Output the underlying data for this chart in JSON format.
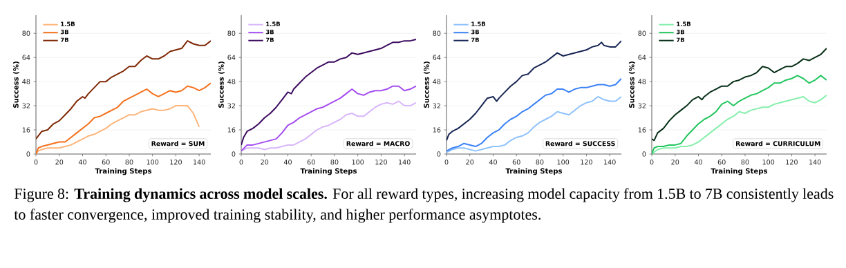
{
  "chart_data": [
    {
      "type": "line",
      "xlabel": "Training Steps",
      "ylabel": "Success (%)",
      "xlim": [
        0,
        150
      ],
      "ylim": [
        0,
        92
      ],
      "xticks": [
        0,
        20,
        40,
        60,
        80,
        100,
        120,
        140
      ],
      "yticks": [
        0,
        16,
        32,
        48,
        64,
        80
      ],
      "grid": "y",
      "legend": "top left",
      "marker": "none",
      "annotations": [
        "Reward = SUM",
        "Figure 8: **Training dynamics across model scales.** For all reward types, increasing model capacity from 1.5B to 7B consistently leads to faster convergence, improved training stability, and higher performance asymptotes."
      ],
      "series": [
        {
          "name": "1.5B",
          "color": "#fdb57a",
          "x": [
            0,
            2,
            5,
            10,
            15,
            20,
            25,
            30,
            35,
            40,
            45,
            50,
            55,
            60,
            65,
            70,
            75,
            80,
            85,
            90,
            95,
            100,
            105,
            110,
            115,
            120,
            125,
            130,
            135,
            140
          ],
          "values": [
            0,
            2,
            3,
            4,
            4,
            4,
            5,
            6,
            8,
            10,
            12,
            13,
            15,
            17,
            20,
            22,
            24,
            26,
            26,
            28,
            29,
            30,
            29,
            29,
            30,
            32,
            32,
            32,
            27,
            18
          ]
        },
        {
          "name": "3B",
          "color": "#f4711c",
          "x": [
            0,
            2,
            5,
            10,
            15,
            20,
            25,
            30,
            35,
            40,
            45,
            50,
            55,
            60,
            65,
            70,
            75,
            80,
            85,
            90,
            95,
            100,
            105,
            110,
            115,
            120,
            125,
            130,
            135,
            140,
            145,
            150
          ],
          "values": [
            0,
            4,
            5,
            6,
            7,
            8,
            8,
            11,
            14,
            17,
            20,
            24,
            25,
            27,
            29,
            31,
            35,
            37,
            39,
            41,
            43,
            40,
            38,
            40,
            42,
            41,
            42,
            45,
            44,
            42,
            44,
            47
          ]
        },
        {
          "name": "7B",
          "color": "#7f2704",
          "x": [
            0,
            5,
            10,
            15,
            20,
            25,
            30,
            35,
            40,
            42,
            45,
            50,
            55,
            60,
            65,
            70,
            75,
            80,
            85,
            90,
            95,
            100,
            105,
            110,
            115,
            120,
            125,
            130,
            135,
            140,
            145,
            150
          ],
          "values": [
            10,
            15,
            16,
            20,
            22,
            26,
            30,
            35,
            38,
            37,
            40,
            44,
            48,
            48,
            51,
            53,
            55,
            58,
            58,
            62,
            65,
            63,
            63,
            65,
            68,
            69,
            70,
            75,
            73,
            72,
            72,
            75
          ]
        }
      ]
    },
    {
      "type": "line",
      "xlabel": "Training Steps",
      "ylabel": "Success (%)",
      "xlim": [
        0,
        150
      ],
      "ylim": [
        0,
        92
      ],
      "xticks": [
        0,
        20,
        40,
        60,
        80,
        100,
        120,
        140
      ],
      "yticks": [
        0,
        16,
        32,
        48,
        64,
        80
      ],
      "grid": "y",
      "legend": "top left",
      "marker": "none",
      "annotations": [
        "Reward = MACRO"
      ],
      "series": [
        {
          "name": "1.5B",
          "color": "#d8b6fa",
          "x": [
            0,
            5,
            10,
            15,
            20,
            25,
            30,
            35,
            40,
            45,
            50,
            55,
            60,
            65,
            70,
            75,
            80,
            85,
            90,
            95,
            100,
            105,
            110,
            115,
            120,
            125,
            130,
            135,
            140,
            145,
            150
          ],
          "values": [
            2,
            4,
            4,
            4,
            3,
            4,
            4,
            5,
            6,
            6,
            8,
            10,
            13,
            16,
            18,
            19,
            21,
            23,
            26,
            27,
            25,
            25,
            28,
            31,
            33,
            34,
            33,
            35,
            32,
            32,
            34
          ]
        },
        {
          "name": "3B",
          "color": "#a44cf0",
          "x": [
            0,
            5,
            10,
            15,
            20,
            25,
            30,
            35,
            40,
            45,
            50,
            55,
            60,
            65,
            70,
            75,
            80,
            85,
            90,
            95,
            100,
            105,
            110,
            115,
            120,
            125,
            130,
            135,
            140,
            145,
            150
          ],
          "values": [
            2,
            6,
            6,
            7,
            8,
            9,
            10,
            14,
            19,
            21,
            24,
            26,
            28,
            30,
            31,
            33,
            35,
            37,
            40,
            43,
            40,
            39,
            41,
            42,
            42,
            43,
            45,
            45,
            42,
            43,
            45
          ]
        },
        {
          "name": "7B",
          "color": "#3b0a5e",
          "x": [
            0,
            2,
            5,
            10,
            15,
            20,
            25,
            30,
            35,
            40,
            43,
            45,
            50,
            55,
            60,
            65,
            70,
            75,
            80,
            85,
            90,
            95,
            100,
            105,
            110,
            115,
            120,
            125,
            130,
            135,
            140,
            145,
            150
          ],
          "values": [
            6,
            11,
            15,
            17,
            20,
            24,
            27,
            31,
            36,
            41,
            40,
            43,
            47,
            51,
            54,
            57,
            59,
            61,
            61,
            63,
            64,
            67,
            66,
            67,
            68,
            69,
            70,
            72,
            74,
            74,
            75,
            75,
            76
          ]
        }
      ]
    },
    {
      "type": "line",
      "xlabel": "Training Steps",
      "ylabel": "Success (%)",
      "xlim": [
        0,
        150
      ],
      "ylim": [
        0,
        92
      ],
      "xticks": [
        0,
        20,
        40,
        60,
        80,
        100,
        120,
        140
      ],
      "yticks": [
        0,
        16,
        32,
        48,
        64,
        80
      ],
      "grid": "y",
      "legend": "top left",
      "marker": "none",
      "annotations": [
        "Reward = SUCCESS"
      ],
      "series": [
        {
          "name": "1.5B",
          "color": "#8ec2fb",
          "x": [
            0,
            5,
            10,
            15,
            20,
            25,
            30,
            35,
            40,
            45,
            50,
            55,
            60,
            65,
            70,
            75,
            80,
            85,
            90,
            95,
            100,
            105,
            110,
            115,
            120,
            125,
            130,
            135,
            140,
            145,
            150
          ],
          "values": [
            1,
            3,
            4,
            4,
            3,
            2,
            3,
            4,
            5,
            5,
            6,
            9,
            11,
            12,
            14,
            18,
            21,
            23,
            25,
            28,
            27,
            26,
            29,
            32,
            34,
            35,
            38,
            36,
            35,
            35,
            38
          ]
        },
        {
          "name": "3B",
          "color": "#3b82f6",
          "x": [
            0,
            5,
            10,
            15,
            20,
            25,
            30,
            35,
            40,
            45,
            50,
            55,
            60,
            65,
            70,
            75,
            80,
            85,
            90,
            95,
            100,
            105,
            110,
            115,
            120,
            125,
            130,
            135,
            140,
            145,
            150
          ],
          "values": [
            2,
            4,
            5,
            7,
            6,
            5,
            7,
            11,
            14,
            16,
            20,
            23,
            25,
            28,
            30,
            33,
            36,
            39,
            40,
            43,
            43,
            41,
            43,
            44,
            44,
            45,
            46,
            46,
            45,
            46,
            50
          ]
        },
        {
          "name": "7B",
          "color": "#172554",
          "x": [
            0,
            2,
            5,
            10,
            15,
            20,
            25,
            30,
            35,
            40,
            43,
            45,
            50,
            55,
            60,
            65,
            70,
            75,
            80,
            85,
            90,
            95,
            100,
            105,
            110,
            115,
            120,
            125,
            130,
            133,
            135,
            140,
            145,
            150
          ],
          "values": [
            9,
            13,
            15,
            17,
            20,
            23,
            27,
            32,
            37,
            38,
            35,
            37,
            41,
            45,
            48,
            52,
            53,
            57,
            59,
            61,
            64,
            67,
            65,
            66,
            67,
            68,
            69,
            71,
            72,
            74,
            72,
            71,
            71,
            75
          ]
        }
      ]
    },
    {
      "type": "line",
      "xlabel": "Training Steps",
      "ylabel": "Success (%)",
      "xlim": [
        0,
        150
      ],
      "ylim": [
        0,
        92
      ],
      "xticks": [
        0,
        20,
        40,
        60,
        80,
        100,
        120,
        140
      ],
      "yticks": [
        0,
        16,
        32,
        48,
        64,
        80
      ],
      "grid": "y",
      "legend": "top left",
      "marker": "none",
      "annotations": [
        "Reward = CURRICULUM"
      ],
      "series": [
        {
          "name": "1.5B",
          "color": "#86efac",
          "x": [
            0,
            5,
            10,
            15,
            20,
            25,
            30,
            35,
            40,
            45,
            50,
            55,
            60,
            65,
            70,
            75,
            80,
            85,
            90,
            95,
            100,
            105,
            110,
            115,
            120,
            125,
            130,
            135,
            140,
            145,
            150
          ],
          "values": [
            0,
            3,
            4,
            4,
            4,
            5,
            5,
            6,
            8,
            11,
            14,
            17,
            20,
            23,
            25,
            28,
            27,
            29,
            30,
            31,
            31,
            33,
            34,
            35,
            36,
            37,
            38,
            35,
            34,
            36,
            39
          ]
        },
        {
          "name": "3B",
          "color": "#22c55e",
          "x": [
            0,
            2,
            5,
            10,
            15,
            20,
            25,
            30,
            35,
            40,
            45,
            50,
            55,
            60,
            65,
            70,
            75,
            80,
            85,
            90,
            95,
            100,
            105,
            110,
            115,
            120,
            125,
            130,
            135,
            140,
            145,
            150
          ],
          "values": [
            0,
            4,
            5,
            5,
            6,
            6,
            7,
            12,
            16,
            20,
            23,
            25,
            28,
            33,
            35,
            32,
            35,
            37,
            39,
            40,
            42,
            44,
            47,
            47,
            49,
            50,
            52,
            50,
            47,
            49,
            52,
            49
          ]
        },
        {
          "name": "7B",
          "color": "#052e16",
          "x": [
            0,
            2,
            5,
            10,
            15,
            20,
            25,
            30,
            35,
            40,
            43,
            45,
            50,
            55,
            60,
            65,
            70,
            75,
            80,
            85,
            90,
            95,
            100,
            105,
            110,
            115,
            120,
            125,
            130,
            135,
            140,
            145,
            150
          ],
          "values": [
            10,
            9,
            14,
            17,
            22,
            26,
            29,
            32,
            36,
            38,
            36,
            38,
            41,
            43,
            45,
            45,
            48,
            49,
            51,
            52,
            54,
            58,
            57,
            54,
            56,
            58,
            58,
            60,
            63,
            62,
            64,
            66,
            70
          ]
        }
      ]
    }
  ]
}
